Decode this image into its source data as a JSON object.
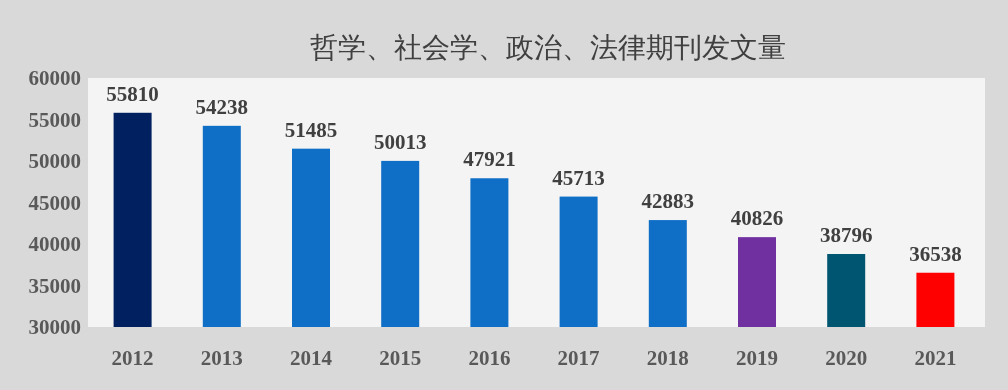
{
  "chart_data": {
    "type": "bar",
    "title": "哲学、社会学、政治、法律期刊发文量",
    "categories": [
      "2012",
      "2013",
      "2014",
      "2015",
      "2016",
      "2017",
      "2018",
      "2019",
      "2020",
      "2021"
    ],
    "values": [
      55810,
      54238,
      51485,
      50013,
      47921,
      45713,
      42883,
      40826,
      38796,
      36538
    ],
    "colors": [
      "#002060",
      "#0f6fc6",
      "#0f6fc6",
      "#0f6fc6",
      "#0f6fc6",
      "#0f6fc6",
      "#0f6fc6",
      "#7030a0",
      "#005670",
      "#ff0000"
    ],
    "ylim": [
      30000,
      60000
    ],
    "yticks": [
      30000,
      35000,
      40000,
      45000,
      50000,
      55000,
      60000
    ],
    "data_labels": true,
    "grid": false
  }
}
